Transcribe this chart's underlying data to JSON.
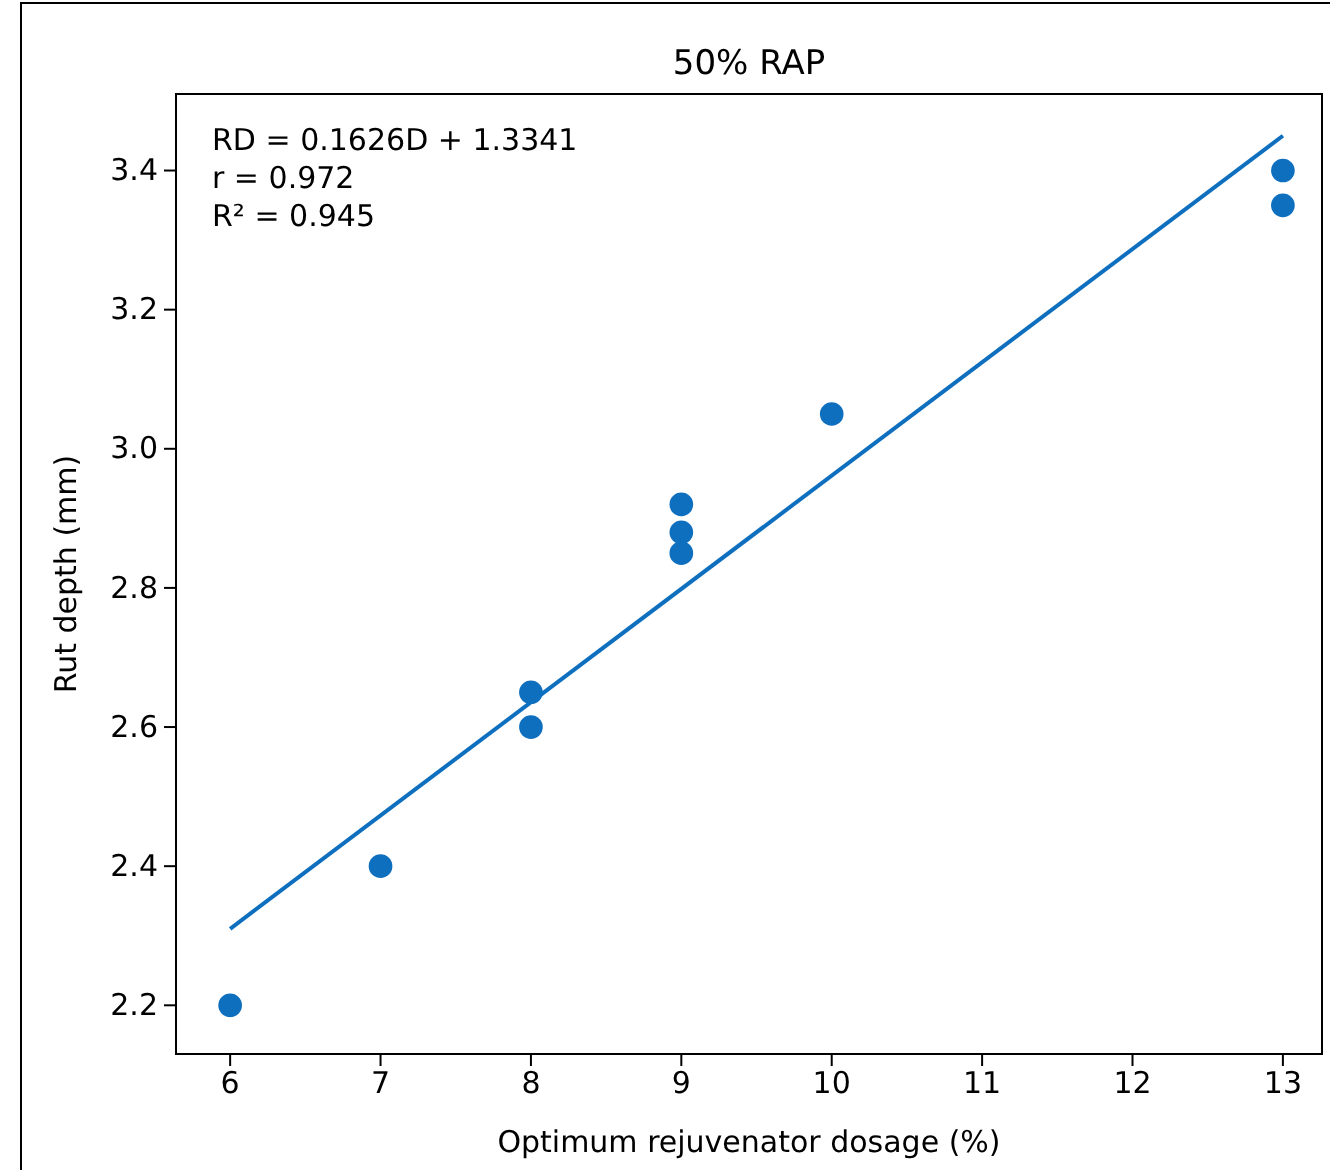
{
  "chart_data": {
    "type": "scatter",
    "title": "50% RAP",
    "xlabel": "Optimum rejuvenator dosage (%)",
    "ylabel": "Rut depth (mm)",
    "xlim": [
      5.64,
      13.26
    ],
    "xticks": [
      6,
      7,
      8,
      9,
      10,
      11,
      12,
      13
    ],
    "ylim": [
      2.13,
      3.51
    ],
    "yticks": [
      {
        "value": 2.2,
        "label": "2.2"
      },
      {
        "value": 2.4,
        "label": "2.4"
      },
      {
        "value": 2.6,
        "label": "2.6"
      },
      {
        "value": 2.8,
        "label": "2.8"
      },
      {
        "value": 3.0,
        "label": "3.0"
      },
      {
        "value": 3.2,
        "label": "3.2"
      },
      {
        "value": 3.4,
        "label": "3.4"
      }
    ],
    "grid": false,
    "annotations": [
      "RD = 0.1626D + 1.3341",
      "r = 0.972",
      "R² = 0.945"
    ],
    "series": [
      {
        "marker": "circle",
        "color": "#0f6fbf",
        "x": [
          6,
          7,
          8,
          8,
          9,
          9,
          9,
          10,
          13,
          13
        ],
        "values": [
          2.2,
          2.4,
          2.65,
          2.6,
          2.92,
          2.88,
          2.85,
          3.05,
          3.4,
          3.35
        ]
      },
      {
        "type": "line",
        "marker": "none",
        "color": "#0f6fbf",
        "line_style": "solid",
        "x": [
          6,
          13
        ],
        "values": [
          2.31,
          3.45
        ]
      }
    ]
  }
}
